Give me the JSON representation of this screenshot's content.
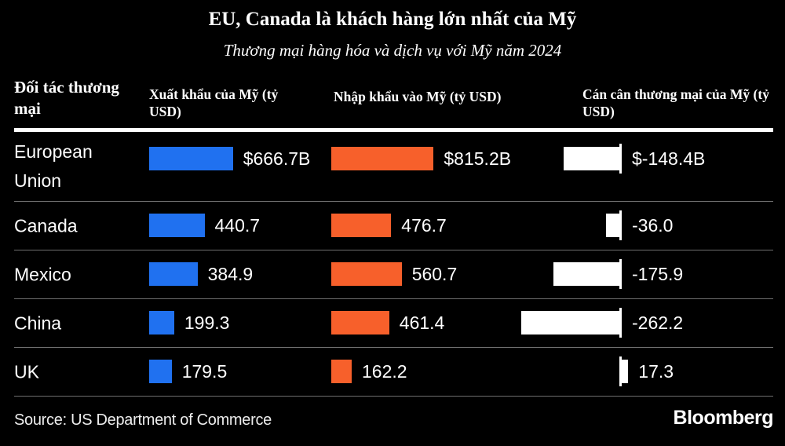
{
  "title": "EU, Canada là khách hàng lớn nhất của Mỹ",
  "subtitle": "Thương mại hàng hóa và dịch vụ với Mỹ năm 2024",
  "columns": {
    "partner": "Đối tác thương mại",
    "exports": "Xuất khẩu của Mỹ (tỷ USD)",
    "imports": "Nhập khẩu vào Mỹ (tỷ USD)",
    "balance": "Cán cân thương mại của Mỹ (tỷ USD)"
  },
  "rows": [
    {
      "partner": "European Union",
      "exports": 666.7,
      "exports_label": "$666.7B",
      "imports": 815.2,
      "imports_label": "$815.2B",
      "balance": -148.4,
      "balance_label": "$-148.4B"
    },
    {
      "partner": "Canada",
      "exports": 440.7,
      "exports_label": "440.7",
      "imports": 476.7,
      "imports_label": "476.7",
      "balance": -36.0,
      "balance_label": "-36.0"
    },
    {
      "partner": "Mexico",
      "exports": 384.9,
      "exports_label": "384.9",
      "imports": 560.7,
      "imports_label": "560.7",
      "balance": -175.9,
      "balance_label": "-175.9"
    },
    {
      "partner": "China",
      "exports": 199.3,
      "exports_label": "199.3",
      "imports": 461.4,
      "imports_label": "461.4",
      "balance": -262.2,
      "balance_label": "-262.2"
    },
    {
      "partner": "UK",
      "exports": 179.5,
      "exports_label": "179.5",
      "imports": 162.2,
      "imports_label": "162.2",
      "balance": 17.3,
      "balance_label": "17.3"
    }
  ],
  "source": "Source: US Department of Commerce",
  "logo": "Bloomberg",
  "colors": {
    "background": "#000000",
    "exports_bar": "#2071f0",
    "imports_bar": "#f7602b",
    "balance_bar": "#ffffff",
    "separator": "#6f6f6f"
  },
  "chart_data": {
    "type": "bar",
    "orientation": "horizontal",
    "title": "EU, Canada là khách hàng lớn nhất của Mỹ",
    "subtitle": "Thương mại hàng hóa và dịch vụ với Mỹ năm 2024",
    "categories": [
      "European Union",
      "Canada",
      "Mexico",
      "China",
      "UK"
    ],
    "series": [
      {
        "name": "Xuất khẩu của Mỹ (tỷ USD)",
        "color": "#2071f0",
        "values": [
          666.7,
          440.7,
          384.9,
          199.3,
          179.5
        ]
      },
      {
        "name": "Nhập khẩu vào Mỹ (tỷ USD)",
        "color": "#f7602b",
        "values": [
          815.2,
          476.7,
          560.7,
          461.4,
          162.2
        ]
      },
      {
        "name": "Cán cân thương mại của Mỹ (tỷ USD)",
        "color": "#ffffff",
        "values": [
          -148.4,
          -36.0,
          -175.9,
          -262.2,
          17.3
        ]
      }
    ],
    "data_labels": {
      "exports": [
        "$666.7B",
        "440.7",
        "384.9",
        "199.3",
        "179.5"
      ],
      "imports": [
        "$815.2B",
        "476.7",
        "560.7",
        "461.4",
        "162.2"
      ],
      "balance": [
        "$-148.4B",
        "-36.0",
        "-175.9",
        "-262.2",
        "17.3"
      ]
    },
    "grid": false,
    "legend_position": "column-headers",
    "source": "Source: US Department of Commerce",
    "brand": "Bloomberg"
  }
}
